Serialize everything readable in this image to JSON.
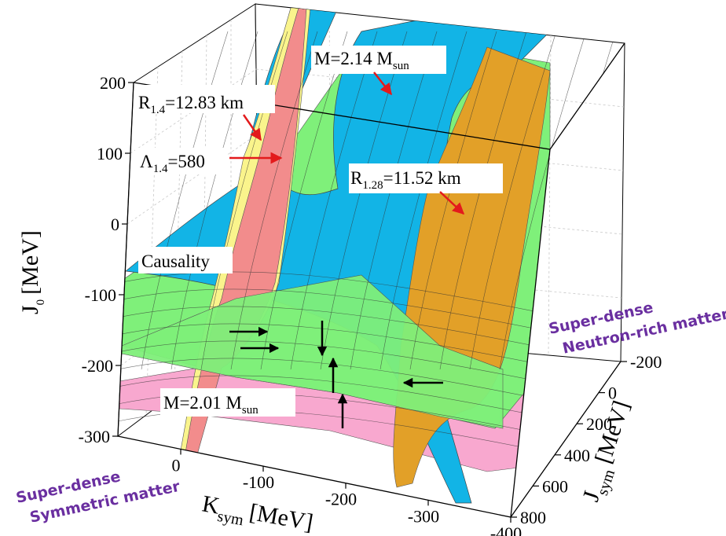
{
  "chart_data": {
    "type": "surface3d",
    "axes": {
      "x": {
        "label": "K",
        "label_sub": "sym",
        "label_unit": "[MeV]",
        "ticks": [
          "0",
          "-100",
          "-200",
          "-300",
          "-400"
        ],
        "range": [
          0,
          -400
        ]
      },
      "y": {
        "label": "J",
        "label_sub": "sym",
        "label_unit": "[MeV]",
        "ticks": [
          "-200",
          "0",
          "200",
          "400",
          "600",
          "800"
        ],
        "range": [
          -200,
          800
        ]
      },
      "z": {
        "label": "J",
        "label_sub": "0",
        "label_unit": "[MeV]",
        "ticks": [
          "200",
          "100",
          "0",
          "-100",
          "-200",
          "-300"
        ],
        "range": [
          -300,
          200
        ]
      }
    },
    "surfaces": [
      {
        "name": "M=2.01 Msun",
        "color": "#f8a8cf"
      },
      {
        "name": "Causality",
        "color": "#12b4e6"
      },
      {
        "name": "R1.28=11.52 km",
        "color": "#e2a028"
      },
      {
        "name": "M=2.14 Msun",
        "color": "#7ff07a"
      },
      {
        "name": "R1.4=12.83 km",
        "color": "#f28c8c"
      },
      {
        "name": "Λ1.4=580",
        "color": "#faf48c"
      }
    ],
    "annotations": [
      {
        "id": "r14",
        "main": "R",
        "sub": "1.4",
        "rest": "=12.83 km"
      },
      {
        "id": "lambda",
        "main": "Λ",
        "sub": "1.4",
        "rest": "=580"
      },
      {
        "id": "m214",
        "main": "M=2.14 M",
        "sub": "sun",
        "rest": ""
      },
      {
        "id": "r128",
        "main": "R",
        "sub": "1.28",
        "rest": "=11.52 km"
      },
      {
        "id": "causality",
        "main": "Causality",
        "sub": "",
        "rest": ""
      },
      {
        "id": "m201",
        "main": "M=2.01 M",
        "sub": "sun",
        "rest": ""
      }
    ],
    "corner_labels": {
      "left": [
        "Super-dense",
        "Symmetric matter"
      ],
      "right": [
        "Super-dense",
        "Neutron-rich matter"
      ]
    },
    "grid": true
  }
}
